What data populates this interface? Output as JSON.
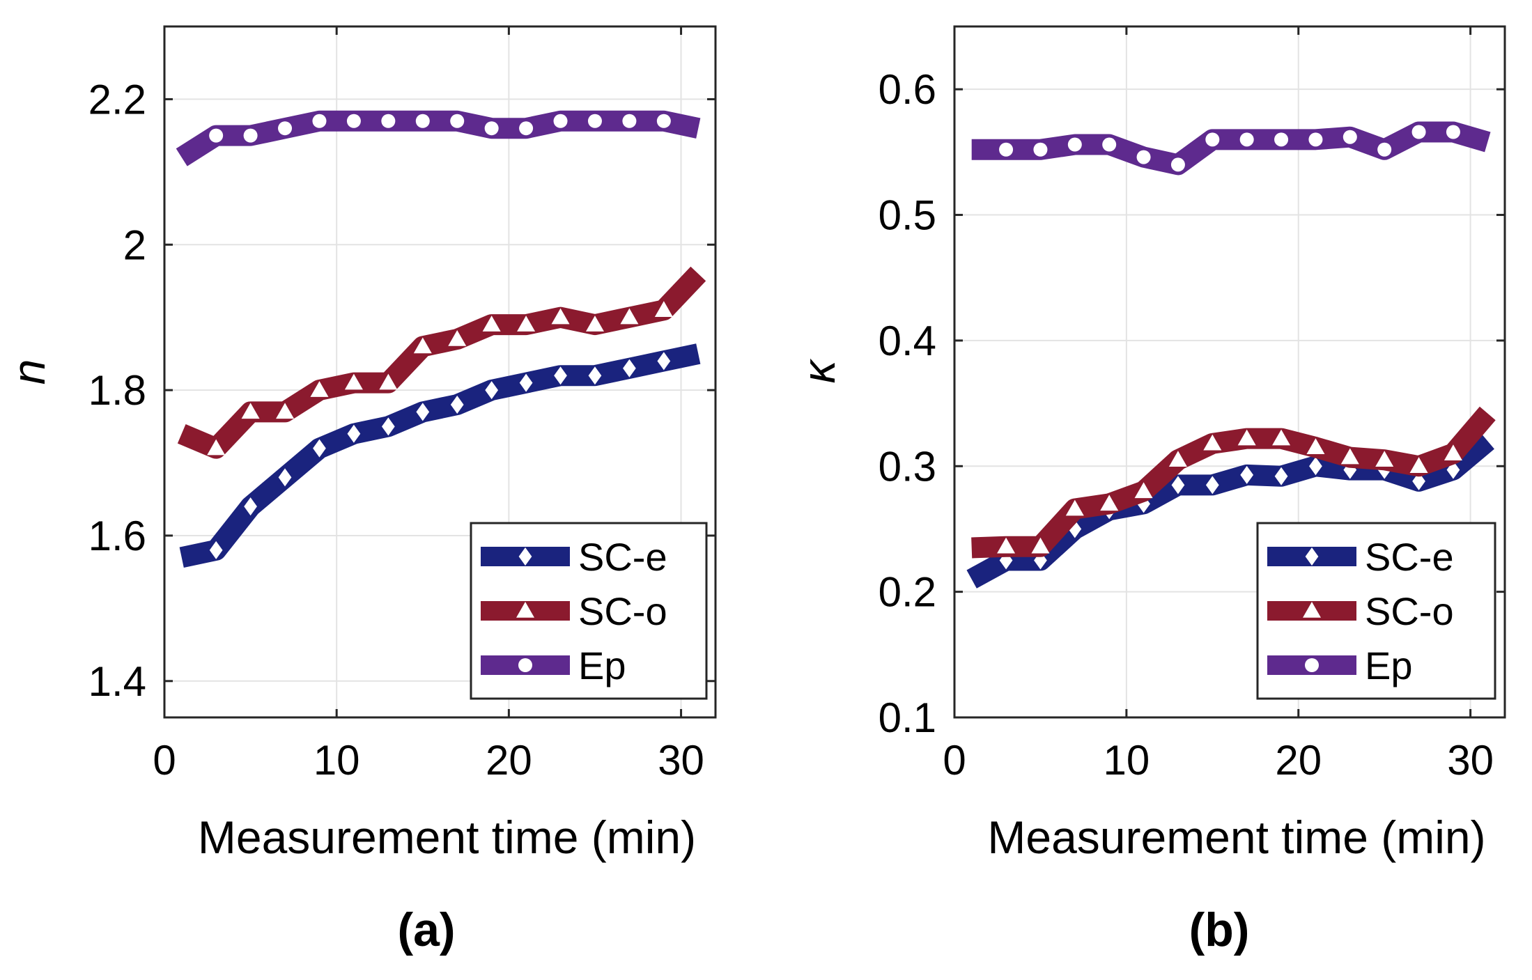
{
  "chart_data": [
    {
      "type": "line",
      "panel_label": "(a)",
      "xlabel": "Measurement time (min)",
      "ylabel": "n",
      "xlim": [
        0,
        32
      ],
      "ylim": [
        1.35,
        2.3
      ],
      "xticks": [
        0,
        10,
        20,
        30
      ],
      "xtick_labels": [
        "0",
        "10",
        "20",
        "30"
      ],
      "yticks": [
        1.4,
        1.6,
        1.8,
        2.0,
        2.2
      ],
      "ytick_labels": [
        "1.4",
        "1.6",
        "1.8",
        "2",
        "2.2"
      ],
      "grid": true,
      "legend_position": "bottom-right",
      "line_x": [
        1,
        3,
        5,
        7,
        9,
        11,
        13,
        15,
        17,
        19,
        21,
        23,
        25,
        27,
        29,
        31
      ],
      "marker_x": [
        3,
        5,
        7,
        9,
        11,
        13,
        15,
        17,
        19,
        21,
        23,
        25,
        27,
        29
      ],
      "series": [
        {
          "name": "SC-e",
          "color": "#1a237e",
          "marker": "diamond",
          "values": [
            1.57,
            1.58,
            1.64,
            1.68,
            1.72,
            1.74,
            1.75,
            1.77,
            1.78,
            1.8,
            1.81,
            1.82,
            1.82,
            1.83,
            1.84,
            1.85
          ]
        },
        {
          "name": "SC-o",
          "color": "#8b1a2e",
          "marker": "triangle",
          "values": [
            1.74,
            1.72,
            1.77,
            1.77,
            1.8,
            1.81,
            1.81,
            1.86,
            1.87,
            1.89,
            1.89,
            1.9,
            1.89,
            1.9,
            1.91,
            1.96
          ]
        },
        {
          "name": "Ep",
          "color": "#5e2a8e",
          "marker": "circle",
          "values": [
            2.12,
            2.15,
            2.15,
            2.16,
            2.17,
            2.17,
            2.17,
            2.17,
            2.17,
            2.16,
            2.16,
            2.17,
            2.17,
            2.17,
            2.17,
            2.16
          ]
        }
      ]
    },
    {
      "type": "line",
      "panel_label": "(b)",
      "xlabel": "Measurement time (min)",
      "ylabel": "κ",
      "xlim": [
        0,
        32
      ],
      "ylim": [
        0.1,
        0.65
      ],
      "xticks": [
        0,
        10,
        20,
        30
      ],
      "xtick_labels": [
        "0",
        "10",
        "20",
        "30"
      ],
      "yticks": [
        0.1,
        0.2,
        0.3,
        0.4,
        0.5,
        0.6
      ],
      "ytick_labels": [
        "0.1",
        "0.2",
        "0.3",
        "0.4",
        "0.5",
        "0.6"
      ],
      "grid": true,
      "legend_position": "bottom-right",
      "line_x": [
        1,
        3,
        5,
        7,
        9,
        11,
        13,
        15,
        17,
        19,
        21,
        23,
        25,
        27,
        29,
        31
      ],
      "marker_x": [
        3,
        5,
        7,
        9,
        11,
        13,
        15,
        17,
        19,
        21,
        23,
        25,
        27,
        29
      ],
      "series": [
        {
          "name": "SC-e",
          "color": "#1a237e",
          "marker": "diamond",
          "values": [
            0.21,
            0.225,
            0.225,
            0.25,
            0.265,
            0.27,
            0.285,
            0.285,
            0.293,
            0.292,
            0.3,
            0.297,
            0.297,
            0.288,
            0.297,
            0.32
          ]
        },
        {
          "name": "SC-o",
          "color": "#8b1a2e",
          "marker": "triangle",
          "values": [
            0.235,
            0.236,
            0.236,
            0.266,
            0.27,
            0.28,
            0.305,
            0.318,
            0.322,
            0.322,
            0.315,
            0.307,
            0.305,
            0.3,
            0.31,
            0.342
          ]
        },
        {
          "name": "Ep",
          "color": "#5e2a8e",
          "marker": "circle",
          "values": [
            0.552,
            0.552,
            0.552,
            0.556,
            0.556,
            0.546,
            0.54,
            0.56,
            0.56,
            0.56,
            0.56,
            0.562,
            0.552,
            0.566,
            0.566,
            0.558
          ]
        }
      ]
    }
  ]
}
